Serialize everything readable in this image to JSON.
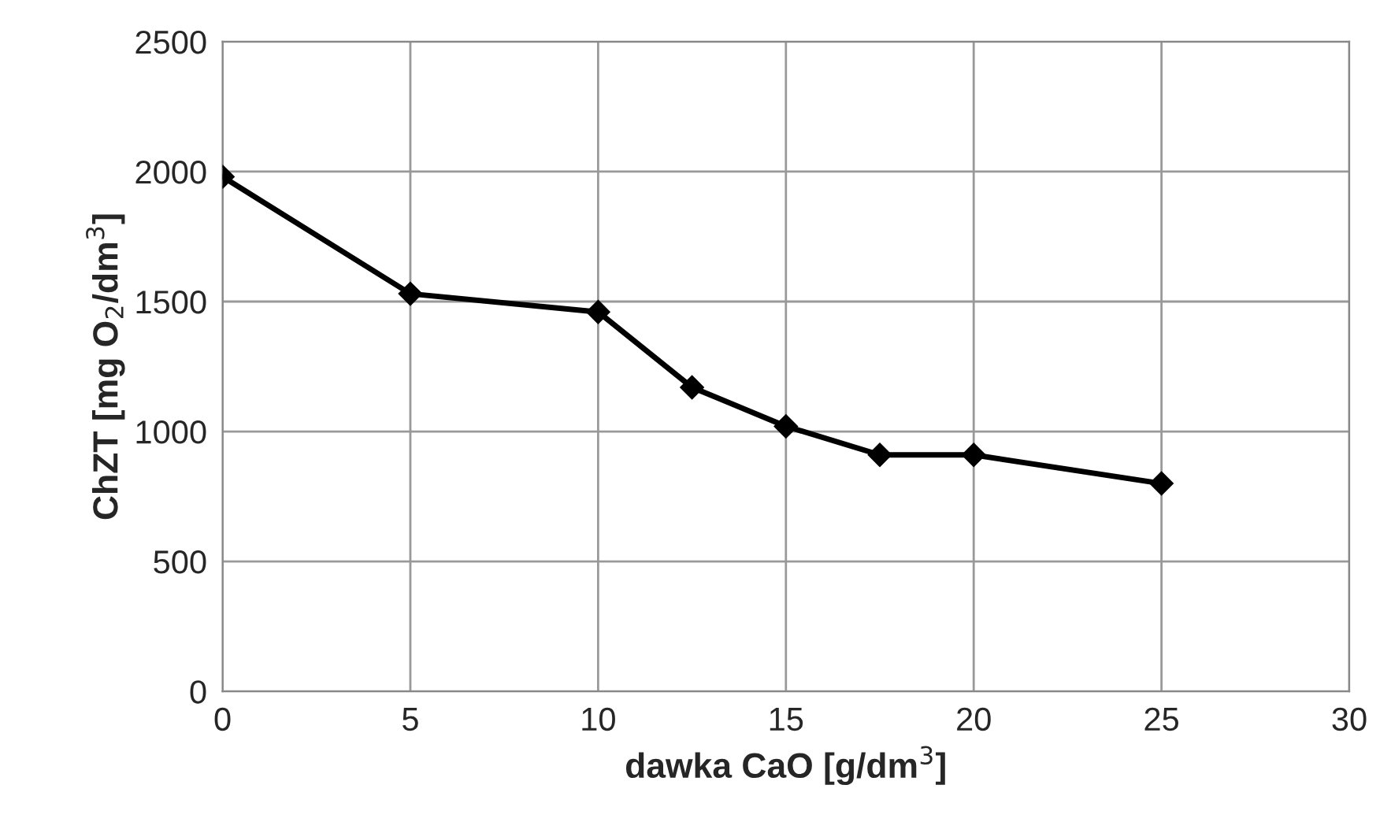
{
  "chart_data": {
    "type": "line",
    "xlabel": "dawka CaO [g/dm$^{3}$]",
    "ylabel": "ChZT [mg O$_{2}$/dm$^{3}$]",
    "x": [
      0,
      5,
      10,
      12.5,
      15,
      17.5,
      20,
      25
    ],
    "series": [
      {
        "color": "#000000",
        "values": [
          1980,
          1530,
          1460,
          1170,
          1020,
          910,
          910,
          800
        ]
      }
    ],
    "xlim": [
      0,
      30
    ],
    "xticks": [
      0,
      5,
      10,
      15,
      20,
      25,
      30
    ],
    "ylim": [
      0,
      2500
    ],
    "yticks": [
      0,
      500,
      1000,
      1500,
      2000,
      2500
    ],
    "grid": true,
    "marker": "diamond",
    "line_style": "solid"
  }
}
